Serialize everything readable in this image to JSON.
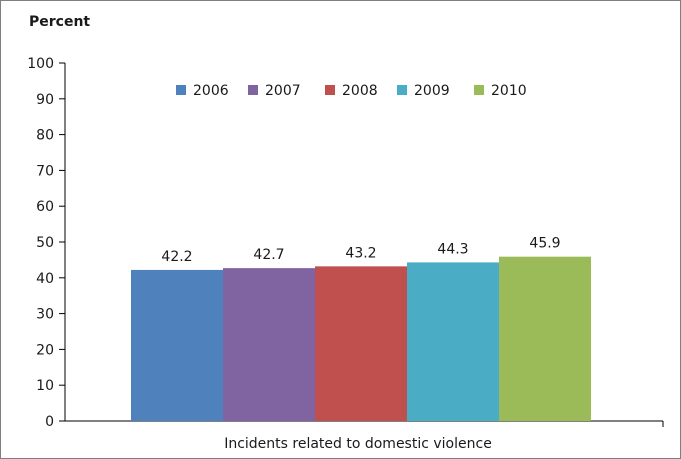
{
  "chart_data": {
    "type": "bar",
    "ylabel": "Percent",
    "categories": [
      "Incidents related to domestic violence"
    ],
    "series": [
      {
        "name": "2006",
        "values": [
          42.2
        ],
        "color": "#4f81bd",
        "label": "42.2"
      },
      {
        "name": "2007",
        "values": [
          42.7
        ],
        "color": "#8064a2",
        "label": "42.7"
      },
      {
        "name": "2008",
        "values": [
          43.2
        ],
        "color": "#c0504d",
        "label": "43.2"
      },
      {
        "name": "2009",
        "values": [
          44.3
        ],
        "color": "#4bacc6",
        "label": "44.3"
      },
      {
        "name": "2010",
        "values": [
          45.9
        ],
        "color": "#9bbb59",
        "label": "45.9"
      }
    ],
    "ylim": [
      0,
      100
    ],
    "yticks": [
      "0",
      "10",
      "20",
      "30",
      "40",
      "50",
      "60",
      "70",
      "80",
      "90",
      "100"
    ],
    "grid": false,
    "legend": "top-center"
  }
}
